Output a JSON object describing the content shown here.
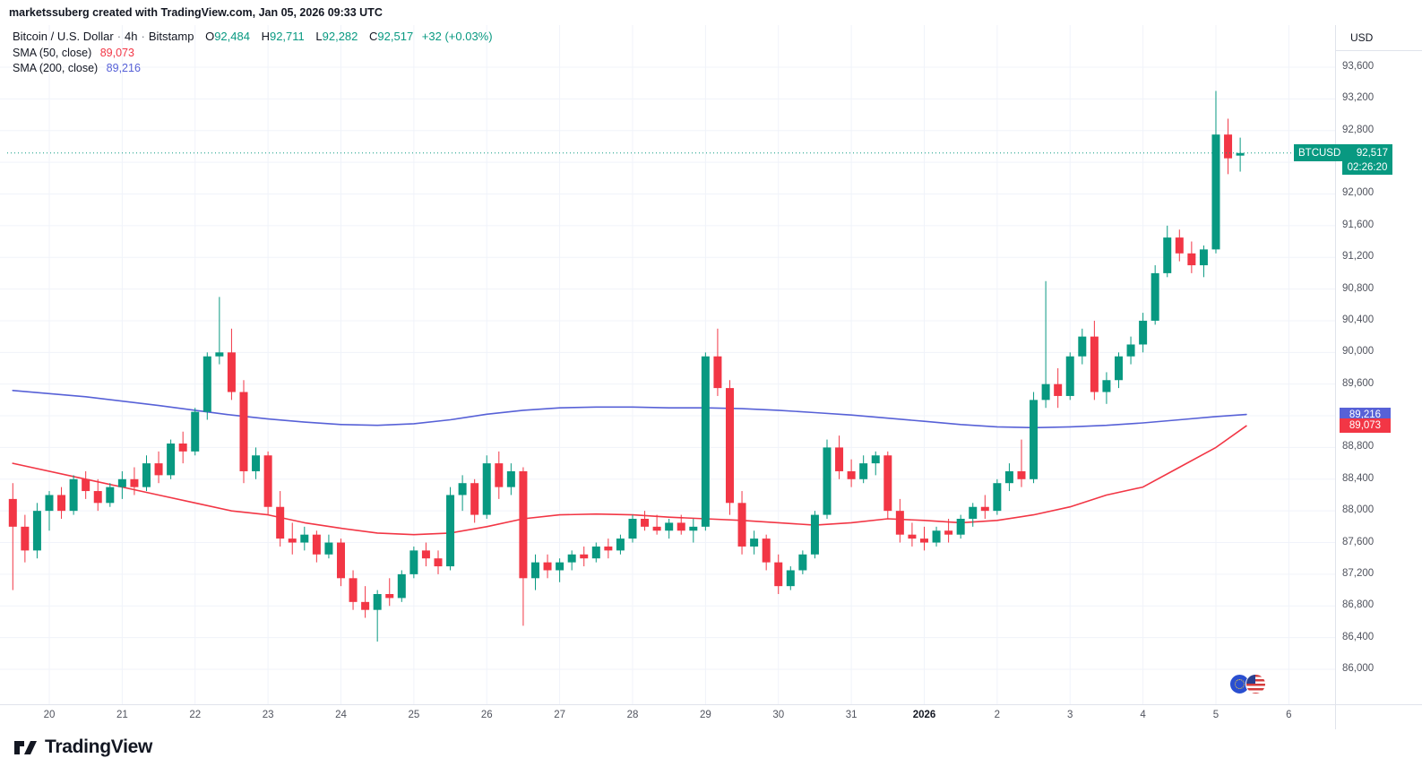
{
  "meta": {
    "attribution": "marketssuberg created with TradingView.com, Jan 05, 2026 09:33 UTC"
  },
  "legend": {
    "title": {
      "symbol": "Bitcoin / U.S. Dollar",
      "sep1": "·",
      "interval": "4h",
      "sep2": "·",
      "exchange": "Bitstamp"
    },
    "ohlc": [
      {
        "label": "O",
        "value": "92,484"
      },
      {
        "label": "H",
        "value": "92,711"
      },
      {
        "label": "L",
        "value": "92,282"
      },
      {
        "label": "C",
        "value": "92,517"
      }
    ],
    "change": "+32 (+0.03%)",
    "sma50": {
      "label": "SMA (50, close)",
      "value": "89,073"
    },
    "sma200": {
      "label": "SMA (200, close)",
      "value": "89,216"
    }
  },
  "price_axis": {
    "currency": "USD",
    "labels": [
      {
        "text": "93,600",
        "value": 93600
      },
      {
        "text": "93,200",
        "value": 93200
      },
      {
        "text": "92,800",
        "value": 92800
      },
      {
        "text": "92,000",
        "value": 92000
      },
      {
        "text": "91,600",
        "value": 91600
      },
      {
        "text": "91,200",
        "value": 91200
      },
      {
        "text": "90,800",
        "value": 90800
      },
      {
        "text": "90,400",
        "value": 90400
      },
      {
        "text": "90,000",
        "value": 90000
      },
      {
        "text": "89,600",
        "value": 89600
      },
      {
        "text": "88,800",
        "value": 88800
      },
      {
        "text": "88,400",
        "value": 88400
      },
      {
        "text": "88,000",
        "value": 88000
      },
      {
        "text": "87,600",
        "value": 87600
      },
      {
        "text": "87,200",
        "value": 87200
      },
      {
        "text": "86,800",
        "value": 86800
      },
      {
        "text": "86,400",
        "value": 86400
      },
      {
        "text": "86,000",
        "value": 86000
      }
    ],
    "badges": {
      "last_price": {
        "symbol": "BTCUSD",
        "price": "92,517",
        "countdown": "02:26:20",
        "value": 92517,
        "color": "#089981"
      },
      "sma200": {
        "text": "89,216",
        "value": 89216,
        "color": "#5761d7"
      },
      "sma50": {
        "text": "89,073",
        "value": 89073,
        "color": "#f23645"
      }
    }
  },
  "time_axis": {
    "labels": [
      {
        "text": "20",
        "index": 3
      },
      {
        "text": "21",
        "index": 9
      },
      {
        "text": "22",
        "index": 15
      },
      {
        "text": "23",
        "index": 21
      },
      {
        "text": "24",
        "index": 27
      },
      {
        "text": "25",
        "index": 33
      },
      {
        "text": "26",
        "index": 39
      },
      {
        "text": "27",
        "index": 45
      },
      {
        "text": "28",
        "index": 51
      },
      {
        "text": "29",
        "index": 57
      },
      {
        "text": "30",
        "index": 63
      },
      {
        "text": "31",
        "index": 69
      },
      {
        "text": "2026",
        "index": 75,
        "bold": true
      },
      {
        "text": "2",
        "index": 81
      },
      {
        "text": "3",
        "index": 87
      },
      {
        "text": "4",
        "index": 93
      },
      {
        "text": "5",
        "index": 99
      },
      {
        "text": "6",
        "index": 105
      }
    ]
  },
  "branding": {
    "logo_text": "TradingView"
  },
  "chart_data": {
    "type": "candlestick",
    "title": "Bitcoin / U.S. Dollar · 4h · Bitstamp",
    "symbol": "BTCUSD",
    "interval": "4h",
    "date_span": "Dec 19 2025 - Jan 5 2026",
    "price_range": [
      86000,
      93600
    ],
    "grid_step": 400,
    "last_price": 92517,
    "last_ohlc": {
      "open": 92484,
      "high": 92711,
      "low": 92282,
      "close": 92517,
      "change": 32,
      "change_pct": 0.03
    },
    "colors": {
      "up": "#089981",
      "down": "#f23645",
      "sma50": "#f23645",
      "sma200": "#5761d7",
      "grid": "#f0f3fa",
      "axis_text": "#50535e"
    },
    "candles": [
      [
        88150,
        88350,
        87000,
        87800
      ],
      [
        87800,
        87950,
        87350,
        87500
      ],
      [
        87500,
        88100,
        87400,
        88000
      ],
      [
        88000,
        88250,
        87750,
        88200
      ],
      [
        88200,
        88300,
        87900,
        88000
      ],
      [
        88000,
        88450,
        87950,
        88400
      ],
      [
        88400,
        88500,
        88150,
        88250
      ],
      [
        88250,
        88400,
        88000,
        88100
      ],
      [
        88100,
        88350,
        88050,
        88300
      ],
      [
        88300,
        88500,
        88150,
        88400
      ],
      [
        88400,
        88550,
        88200,
        88300
      ],
      [
        88300,
        88700,
        88250,
        88600
      ],
      [
        88600,
        88750,
        88350,
        88450
      ],
      [
        88450,
        88900,
        88400,
        88850
      ],
      [
        88850,
        89000,
        88600,
        88750
      ],
      [
        88750,
        89300,
        88700,
        89250
      ],
      [
        89250,
        90000,
        89150,
        89950
      ],
      [
        89950,
        90700,
        89850,
        90000
      ],
      [
        90000,
        90300,
        89400,
        89500
      ],
      [
        89500,
        89650,
        88350,
        88500
      ],
      [
        88500,
        88800,
        88400,
        88700
      ],
      [
        88700,
        88750,
        87950,
        88050
      ],
      [
        88050,
        88250,
        87550,
        87650
      ],
      [
        87650,
        87850,
        87450,
        87600
      ],
      [
        87600,
        87800,
        87500,
        87700
      ],
      [
        87700,
        87750,
        87350,
        87450
      ],
      [
        87450,
        87700,
        87400,
        87600
      ],
      [
        87600,
        87650,
        87050,
        87150
      ],
      [
        87150,
        87250,
        86750,
        86850
      ],
      [
        86850,
        87050,
        86650,
        86750
      ],
      [
        86750,
        87000,
        86350,
        86950
      ],
      [
        86950,
        87150,
        86800,
        86900
      ],
      [
        86900,
        87250,
        86850,
        87200
      ],
      [
        87200,
        87550,
        87150,
        87500
      ],
      [
        87500,
        87600,
        87300,
        87400
      ],
      [
        87400,
        87500,
        87200,
        87300
      ],
      [
        87300,
        88300,
        87250,
        88200
      ],
      [
        88200,
        88450,
        88000,
        88350
      ],
      [
        88350,
        88400,
        87850,
        87950
      ],
      [
        87950,
        88700,
        87900,
        88600
      ],
      [
        88600,
        88750,
        88150,
        88300
      ],
      [
        88300,
        88600,
        88200,
        88500
      ],
      [
        88500,
        88550,
        86550,
        87150
      ],
      [
        87150,
        87450,
        87000,
        87350
      ],
      [
        87350,
        87450,
        87150,
        87250
      ],
      [
        87250,
        87400,
        87100,
        87350
      ],
      [
        87350,
        87500,
        87250,
        87450
      ],
      [
        87450,
        87550,
        87300,
        87400
      ],
      [
        87400,
        87600,
        87350,
        87550
      ],
      [
        87550,
        87650,
        87400,
        87500
      ],
      [
        87500,
        87700,
        87450,
        87650
      ],
      [
        87650,
        87950,
        87600,
        87900
      ],
      [
        87900,
        88000,
        87750,
        87800
      ],
      [
        87800,
        87950,
        87700,
        87750
      ],
      [
        87750,
        87900,
        87650,
        87850
      ],
      [
        87850,
        87950,
        87700,
        87750
      ],
      [
        87750,
        87900,
        87600,
        87800
      ],
      [
        87800,
        90000,
        87750,
        89950
      ],
      [
        89950,
        90300,
        89450,
        89550
      ],
      [
        89550,
        89650,
        87950,
        88100
      ],
      [
        88100,
        88250,
        87450,
        87550
      ],
      [
        87550,
        87750,
        87450,
        87650
      ],
      [
        87650,
        87700,
        87250,
        87350
      ],
      [
        87350,
        87450,
        86950,
        87050
      ],
      [
        87050,
        87300,
        87000,
        87250
      ],
      [
        87250,
        87500,
        87200,
        87450
      ],
      [
        87450,
        88000,
        87400,
        87950
      ],
      [
        87950,
        88900,
        87900,
        88800
      ],
      [
        88800,
        88950,
        88400,
        88500
      ],
      [
        88500,
        88650,
        88300,
        88400
      ],
      [
        88400,
        88700,
        88350,
        88600
      ],
      [
        88600,
        88750,
        88450,
        88700
      ],
      [
        88700,
        88750,
        87900,
        88000
      ],
      [
        88000,
        88150,
        87600,
        87700
      ],
      [
        87700,
        87850,
        87550,
        87650
      ],
      [
        87650,
        87800,
        87500,
        87600
      ],
      [
        87600,
        87800,
        87550,
        87750
      ],
      [
        87750,
        87900,
        87600,
        87700
      ],
      [
        87700,
        87950,
        87650,
        87900
      ],
      [
        87900,
        88100,
        87800,
        88050
      ],
      [
        88050,
        88200,
        87900,
        88000
      ],
      [
        88000,
        88400,
        87950,
        88350
      ],
      [
        88350,
        88600,
        88250,
        88500
      ],
      [
        88500,
        88900,
        88300,
        88400
      ],
      [
        88400,
        89500,
        88350,
        89400
      ],
      [
        89400,
        90900,
        89300,
        89600
      ],
      [
        89600,
        89800,
        89300,
        89450
      ],
      [
        89450,
        90000,
        89400,
        89950
      ],
      [
        89950,
        90300,
        89850,
        90200
      ],
      [
        90200,
        90400,
        89400,
        89500
      ],
      [
        89500,
        89750,
        89350,
        89650
      ],
      [
        89650,
        90000,
        89550,
        89950
      ],
      [
        89950,
        90200,
        89850,
        90100
      ],
      [
        90100,
        90500,
        90000,
        90400
      ],
      [
        90400,
        91100,
        90350,
        91000
      ],
      [
        91000,
        91600,
        90950,
        91450
      ],
      [
        91450,
        91550,
        91150,
        91250
      ],
      [
        91250,
        91400,
        91000,
        91100
      ],
      [
        91100,
        91350,
        90950,
        91300
      ],
      [
        91300,
        93300,
        91250,
        92750
      ],
      [
        92750,
        92950,
        92250,
        92450
      ],
      [
        92484,
        92711,
        92282,
        92517
      ]
    ],
    "sma50_points": [
      [
        0,
        88600
      ],
      [
        6,
        88400
      ],
      [
        12,
        88200
      ],
      [
        15,
        88100
      ],
      [
        18,
        88000
      ],
      [
        21,
        87950
      ],
      [
        24,
        87850
      ],
      [
        27,
        87780
      ],
      [
        30,
        87720
      ],
      [
        33,
        87700
      ],
      [
        36,
        87720
      ],
      [
        39,
        87800
      ],
      [
        42,
        87900
      ],
      [
        45,
        87950
      ],
      [
        48,
        87960
      ],
      [
        51,
        87950
      ],
      [
        54,
        87920
      ],
      [
        57,
        87900
      ],
      [
        60,
        87880
      ],
      [
        63,
        87850
      ],
      [
        66,
        87820
      ],
      [
        69,
        87850
      ],
      [
        72,
        87900
      ],
      [
        75,
        87880
      ],
      [
        78,
        87850
      ],
      [
        81,
        87880
      ],
      [
        84,
        87950
      ],
      [
        87,
        88050
      ],
      [
        90,
        88200
      ],
      [
        93,
        88300
      ],
      [
        96,
        88550
      ],
      [
        99,
        88800
      ],
      [
        101.5,
        89073
      ]
    ],
    "sma200_points": [
      [
        0,
        89520
      ],
      [
        6,
        89440
      ],
      [
        12,
        89330
      ],
      [
        15,
        89270
      ],
      [
        18,
        89210
      ],
      [
        21,
        89160
      ],
      [
        24,
        89120
      ],
      [
        27,
        89090
      ],
      [
        30,
        89080
      ],
      [
        33,
        89100
      ],
      [
        36,
        89150
      ],
      [
        39,
        89220
      ],
      [
        42,
        89270
      ],
      [
        45,
        89300
      ],
      [
        48,
        89310
      ],
      [
        51,
        89310
      ],
      [
        54,
        89300
      ],
      [
        57,
        89300
      ],
      [
        60,
        89290
      ],
      [
        63,
        89270
      ],
      [
        66,
        89240
      ],
      [
        69,
        89210
      ],
      [
        72,
        89170
      ],
      [
        75,
        89130
      ],
      [
        78,
        89090
      ],
      [
        81,
        89060
      ],
      [
        84,
        89050
      ],
      [
        87,
        89060
      ],
      [
        90,
        89080
      ],
      [
        93,
        89110
      ],
      [
        96,
        89150
      ],
      [
        99,
        89190
      ],
      [
        101.5,
        89216
      ]
    ]
  }
}
